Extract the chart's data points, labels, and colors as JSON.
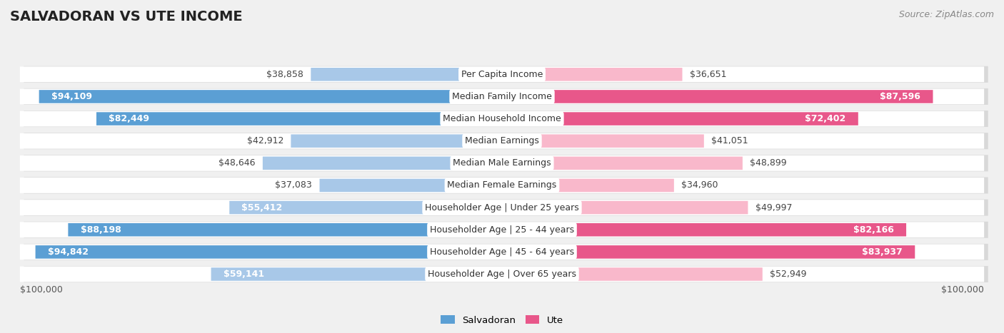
{
  "title": "SALVADORAN VS UTE INCOME",
  "source": "Source: ZipAtlas.com",
  "categories": [
    "Per Capita Income",
    "Median Family Income",
    "Median Household Income",
    "Median Earnings",
    "Median Male Earnings",
    "Median Female Earnings",
    "Householder Age | Under 25 years",
    "Householder Age | 25 - 44 years",
    "Householder Age | 45 - 64 years",
    "Householder Age | Over 65 years"
  ],
  "salvadoran_values": [
    38858,
    94109,
    82449,
    42912,
    48646,
    37083,
    55412,
    88198,
    94842,
    59141
  ],
  "ute_values": [
    36651,
    87596,
    72402,
    41051,
    48899,
    34960,
    49997,
    82166,
    83937,
    52949
  ],
  "salvadoran_labels": [
    "$38,858",
    "$94,109",
    "$82,449",
    "$42,912",
    "$48,646",
    "$37,083",
    "$55,412",
    "$88,198",
    "$94,842",
    "$59,141"
  ],
  "ute_labels": [
    "$36,651",
    "$87,596",
    "$72,402",
    "$41,051",
    "$48,899",
    "$34,960",
    "$49,997",
    "$82,166",
    "$83,937",
    "$52,949"
  ],
  "max_value": 100000,
  "salvadoran_color_light": "#a8c8e8",
  "salvadoran_color_dark": "#5b9fd4",
  "ute_color_light": "#f9b8cb",
  "ute_color_dark": "#e8578a",
  "background_color": "#f0f0f0",
  "row_bg_color": "#ffffff",
  "row_shadow_color": "#d8d8d8",
  "label_box_color": "#ffffff",
  "title_fontsize": 14,
  "source_fontsize": 9,
  "value_fontsize": 9,
  "cat_fontsize": 9,
  "inside_label_threshold": 55000
}
